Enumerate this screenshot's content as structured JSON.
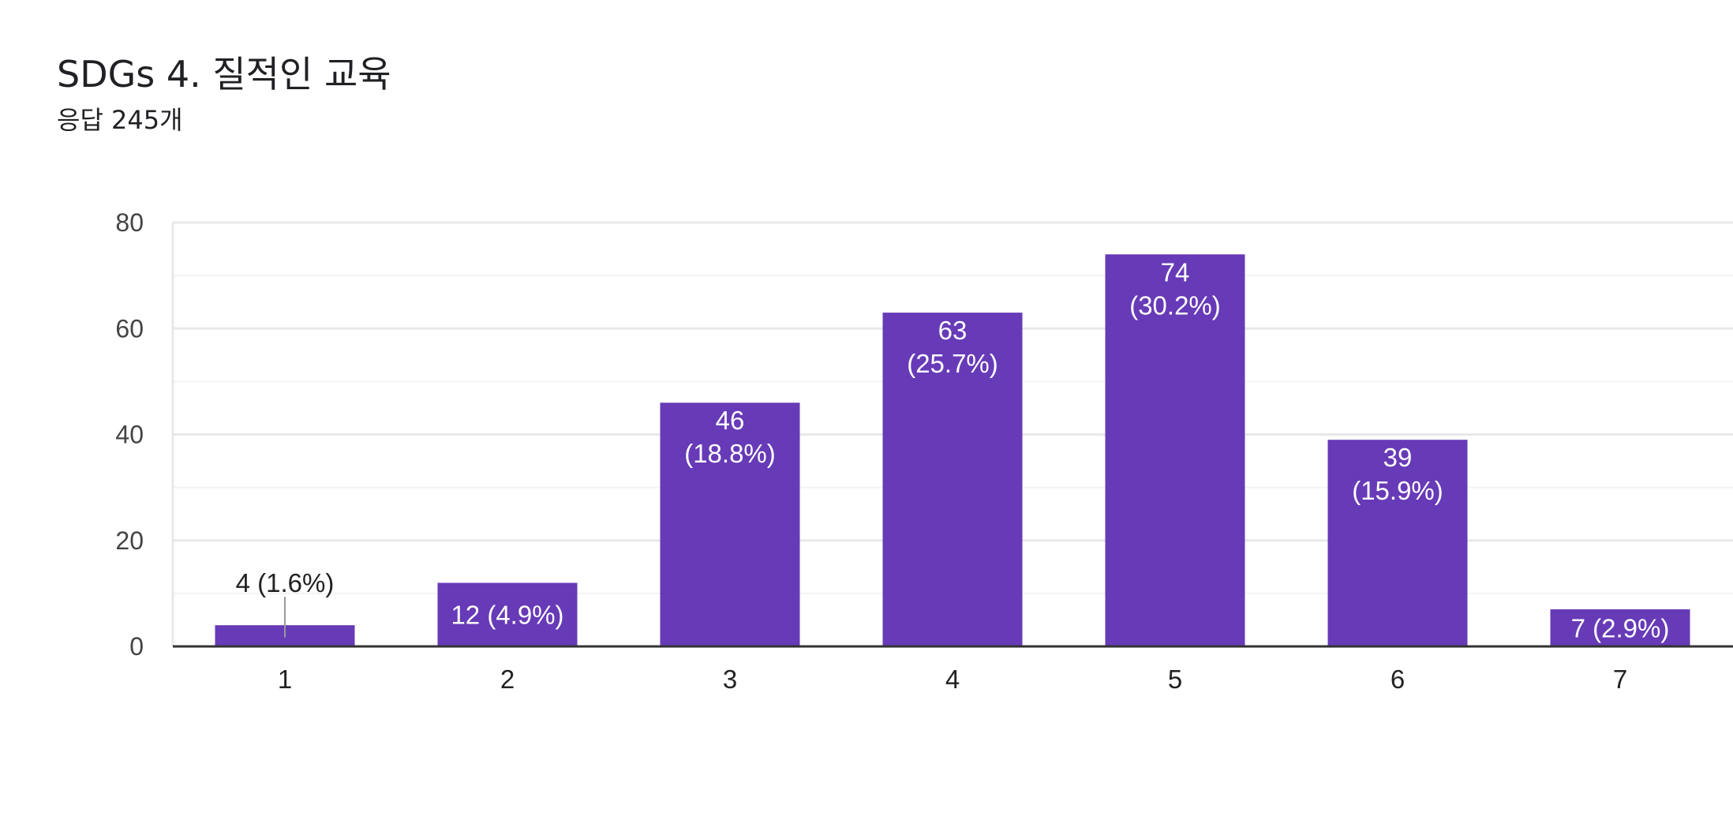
{
  "header": {
    "title": "SDGs 4. 질적인 교육",
    "subtitle": "응답 245개"
  },
  "colors": {
    "bar": "#673ab7",
    "grid_major": "#e8e8e8",
    "grid_minor": "#f3f3f3",
    "baseline": "#333333",
    "tick_text": "#444444",
    "label_inside": "#ffffff",
    "label_outside": "#222222",
    "leader_line": "#999999"
  },
  "chart_data": {
    "type": "bar",
    "categories": [
      "1",
      "2",
      "3",
      "4",
      "5",
      "6",
      "7"
    ],
    "values": [
      4,
      12,
      46,
      63,
      74,
      39,
      7
    ],
    "percentages": [
      "1.6%",
      "4.9%",
      "18.8%",
      "25.7%",
      "30.2%",
      "15.9%",
      "2.9%"
    ],
    "data_labels": [
      [
        "4 (1.6%)"
      ],
      [
        "12 (4.9%)"
      ],
      [
        "46",
        "(18.8%)"
      ],
      [
        "63",
        "(25.7%)"
      ],
      [
        "74",
        "(30.2%)"
      ],
      [
        "39",
        "(15.9%)"
      ],
      [
        "7 (2.9%)"
      ]
    ],
    "yticks": [
      "0",
      "20",
      "40",
      "60",
      "80"
    ],
    "ylim": [
      0,
      80
    ],
    "xlabel": "",
    "ylabel": "",
    "grid": true,
    "legend": "none"
  }
}
